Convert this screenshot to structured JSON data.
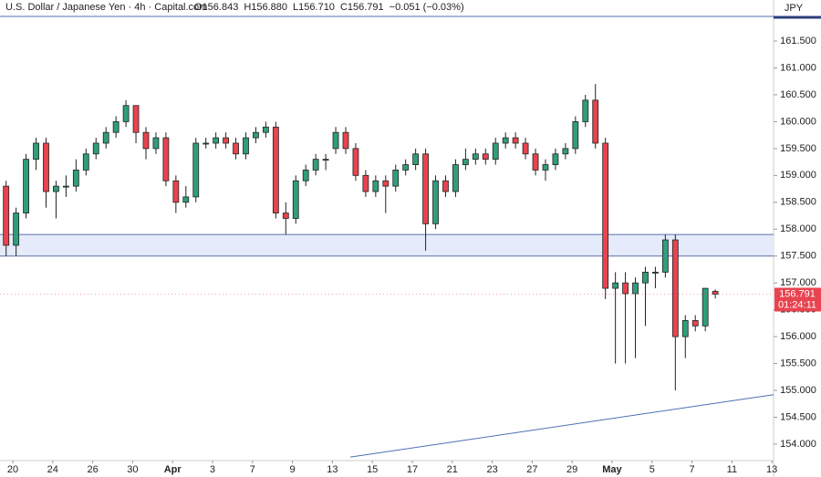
{
  "chart_data": {
    "type": "candlestick",
    "title": "U.S. Dollar / Japanese Yen · 4h · Capital.com",
    "header_values": [
      "O156.843",
      "H156.880",
      "L156.710",
      "C156.791",
      "−0.051 (−0.03%)"
    ],
    "currency": "JPY",
    "price_badge": {
      "value": 156.791,
      "label": "156.791",
      "countdown": "01:24:11"
    },
    "up_color": "#2f9e7a",
    "down_color": "#e8434f",
    "wick_color": "#222222",
    "x": [
      -2,
      1,
      4,
      7,
      10,
      13,
      16,
      19,
      22,
      25,
      28,
      31,
      34,
      37,
      40,
      43,
      46,
      49,
      52,
      55,
      58,
      61,
      64,
      67,
      70,
      73,
      76,
      79,
      82,
      85,
      88,
      91,
      94,
      97,
      100,
      103,
      106,
      109,
      112,
      115,
      118,
      121,
      124,
      127,
      130,
      133,
      136,
      139,
      142,
      145,
      148,
      151,
      154,
      157,
      160,
      163,
      166,
      169,
      172,
      175,
      178,
      181,
      184,
      187,
      190,
      193,
      196,
      199,
      202,
      205,
      208,
      211
    ],
    "open": [
      158.8,
      157.7,
      158.3,
      159.3,
      159.6,
      158.7,
      158.8,
      158.8,
      159.1,
      159.4,
      159.6,
      159.8,
      160.0,
      160.3,
      159.8,
      159.5,
      159.7,
      158.9,
      158.5,
      158.6,
      159.6,
      159.6,
      159.7,
      159.6,
      159.4,
      159.7,
      159.8,
      159.9,
      158.3,
      158.2,
      158.9,
      159.1,
      159.3,
      159.5,
      159.8,
      159.5,
      159.0,
      158.7,
      158.9,
      158.8,
      159.1,
      159.2,
      159.4,
      158.1,
      158.9,
      158.7,
      159.2,
      159.3,
      159.4,
      159.3,
      159.6,
      159.7,
      159.6,
      159.4,
      159.1,
      159.2,
      159.4,
      159.5,
      160.0,
      160.4,
      159.6,
      156.9,
      157.0,
      156.8,
      157.0,
      157.2,
      157.2,
      157.8,
      156.0,
      156.3,
      156.2,
      156.843
    ],
    "high": [
      158.9,
      158.4,
      159.4,
      159.7,
      159.7,
      158.9,
      159.0,
      159.3,
      159.5,
      159.7,
      159.9,
      160.1,
      160.4,
      160.3,
      159.9,
      159.8,
      159.8,
      159.0,
      158.8,
      159.7,
      159.7,
      159.8,
      159.8,
      159.7,
      159.8,
      159.9,
      160.0,
      160.0,
      158.5,
      159.0,
      159.2,
      159.4,
      159.4,
      159.9,
      159.9,
      159.6,
      159.1,
      159.0,
      159.0,
      159.2,
      159.3,
      159.5,
      159.5,
      159.0,
      159.0,
      159.3,
      159.5,
      159.5,
      159.5,
      159.7,
      159.8,
      159.8,
      159.7,
      159.5,
      159.3,
      159.5,
      159.6,
      160.1,
      160.5,
      160.7,
      159.7,
      157.2,
      157.2,
      157.1,
      157.3,
      157.3,
      157.9,
      157.9,
      156.4,
      156.4,
      156.9,
      156.88
    ],
    "low": [
      157.5,
      157.5,
      158.2,
      159.1,
      158.4,
      158.2,
      158.6,
      158.7,
      159.0,
      159.3,
      159.5,
      159.7,
      159.9,
      159.6,
      159.3,
      159.4,
      158.8,
      158.3,
      158.4,
      158.5,
      159.5,
      159.5,
      159.5,
      159.3,
      159.3,
      159.6,
      159.7,
      158.2,
      157.9,
      158.1,
      158.8,
      159.0,
      159.1,
      159.4,
      159.4,
      158.9,
      158.6,
      158.6,
      158.3,
      158.7,
      159.0,
      159.1,
      157.6,
      158.0,
      158.6,
      158.6,
      159.1,
      159.2,
      159.2,
      159.2,
      159.5,
      159.5,
      159.3,
      159.0,
      158.9,
      159.1,
      159.3,
      159.4,
      159.9,
      159.5,
      156.7,
      155.5,
      155.5,
      155.6,
      156.2,
      156.9,
      157.1,
      155.0,
      155.6,
      156.1,
      156.1,
      156.71
    ],
    "close": [
      157.7,
      158.3,
      159.3,
      159.6,
      158.7,
      158.8,
      158.8,
      159.1,
      159.4,
      159.6,
      159.8,
      160.0,
      160.3,
      159.8,
      159.5,
      159.7,
      158.9,
      158.5,
      158.6,
      159.6,
      159.6,
      159.7,
      159.6,
      159.4,
      159.7,
      159.8,
      159.9,
      158.3,
      158.2,
      158.9,
      159.1,
      159.3,
      159.3,
      159.8,
      159.5,
      159.0,
      158.7,
      158.9,
      158.8,
      159.1,
      159.2,
      159.4,
      158.1,
      158.9,
      158.7,
      159.2,
      159.3,
      159.4,
      159.3,
      159.6,
      159.7,
      159.6,
      159.4,
      159.1,
      159.2,
      159.4,
      159.5,
      160.0,
      160.4,
      159.6,
      156.9,
      157.0,
      156.8,
      157.0,
      157.2,
      157.2,
      157.8,
      156.0,
      156.3,
      156.2,
      156.9,
      156.791
    ],
    "zone": {
      "low": 157.5,
      "high": 157.9,
      "color": "#e6ebfb",
      "line_color": "#5a6fa8"
    },
    "trendline": {
      "x": [
        101.4,
        228.5
      ],
      "y": [
        153.76,
        154.92
      ],
      "color": "#4f6fb5"
    },
    "xlim": [
      -3.836,
      228.5
    ],
    "ylim": [
      153.694,
      162.264
    ],
    "xticks": [
      {
        "value": 0,
        "label": "20"
      },
      {
        "value": 12,
        "label": "24"
      },
      {
        "value": 24,
        "label": "26"
      },
      {
        "value": 36,
        "label": "30"
      },
      {
        "value": 48,
        "label": "Apr"
      },
      {
        "value": 60,
        "label": "3"
      },
      {
        "value": 72,
        "label": "7"
      },
      {
        "value": 84,
        "label": "9"
      },
      {
        "value": 96,
        "label": "13"
      },
      {
        "value": 108,
        "label": "15"
      },
      {
        "value": 120,
        "label": "17"
      },
      {
        "value": 132,
        "label": "21"
      },
      {
        "value": 144,
        "label": "23"
      },
      {
        "value": 156,
        "label": "27"
      },
      {
        "value": 168,
        "label": "29"
      },
      {
        "value": 180,
        "label": "May"
      },
      {
        "value": 192,
        "label": "5"
      },
      {
        "value": 204,
        "label": "7"
      },
      {
        "value": 216,
        "label": "11"
      },
      {
        "value": 228,
        "label": "13"
      }
    ],
    "yticks": [
      {
        "value": 154,
        "label": "154.000"
      },
      {
        "value": 154.5,
        "label": "154.500"
      },
      {
        "value": 155,
        "label": "155.000"
      },
      {
        "value": 155.5,
        "label": "155.500"
      },
      {
        "value": 156,
        "label": "156.000"
      },
      {
        "value": 156.5,
        "label": "156.500"
      },
      {
        "value": 157,
        "label": "157.000"
      },
      {
        "value": 157.5,
        "label": "157.500"
      },
      {
        "value": 158,
        "label": "158.000"
      },
      {
        "value": 158.5,
        "label": "158.500"
      },
      {
        "value": 159,
        "label": "159.000"
      },
      {
        "value": 159.5,
        "label": "159.500"
      },
      {
        "value": 160,
        "label": "160.000"
      },
      {
        "value": 160.5,
        "label": "160.500"
      },
      {
        "value": 161,
        "label": "161.000"
      },
      {
        "value": 161.5,
        "label": "161.500"
      }
    ]
  }
}
